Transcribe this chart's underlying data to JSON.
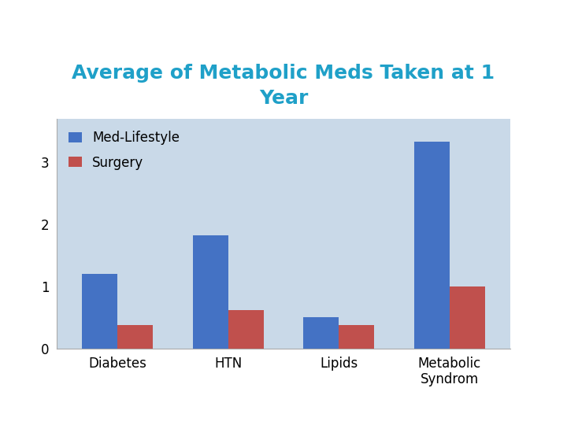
{
  "title": "Average of Metabolic Meds Taken at 1\nYear",
  "categories": [
    "Diabetes",
    "HTN",
    "Lipids",
    "Metabolic\nSyndrom"
  ],
  "med_lifestyle": [
    1.2,
    1.83,
    0.5,
    3.33
  ],
  "surgery": [
    0.38,
    0.62,
    0.38,
    1.0
  ],
  "bar_color_med": "#4472C4",
  "bar_color_surg": "#C0504D",
  "legend_labels": [
    "Med-Lifestyle",
    "Surgery"
  ],
  "bg_color": "#C9D9E8",
  "title_color": "#1FA0C8",
  "tick_color": "#000000",
  "legend_text_color": "#000000",
  "yticks": [
    0,
    1,
    2,
    3
  ],
  "ylim": [
    0,
    3.7
  ],
  "bar_width": 0.32,
  "title_fontsize": 18,
  "tick_fontsize": 12,
  "legend_fontsize": 12
}
